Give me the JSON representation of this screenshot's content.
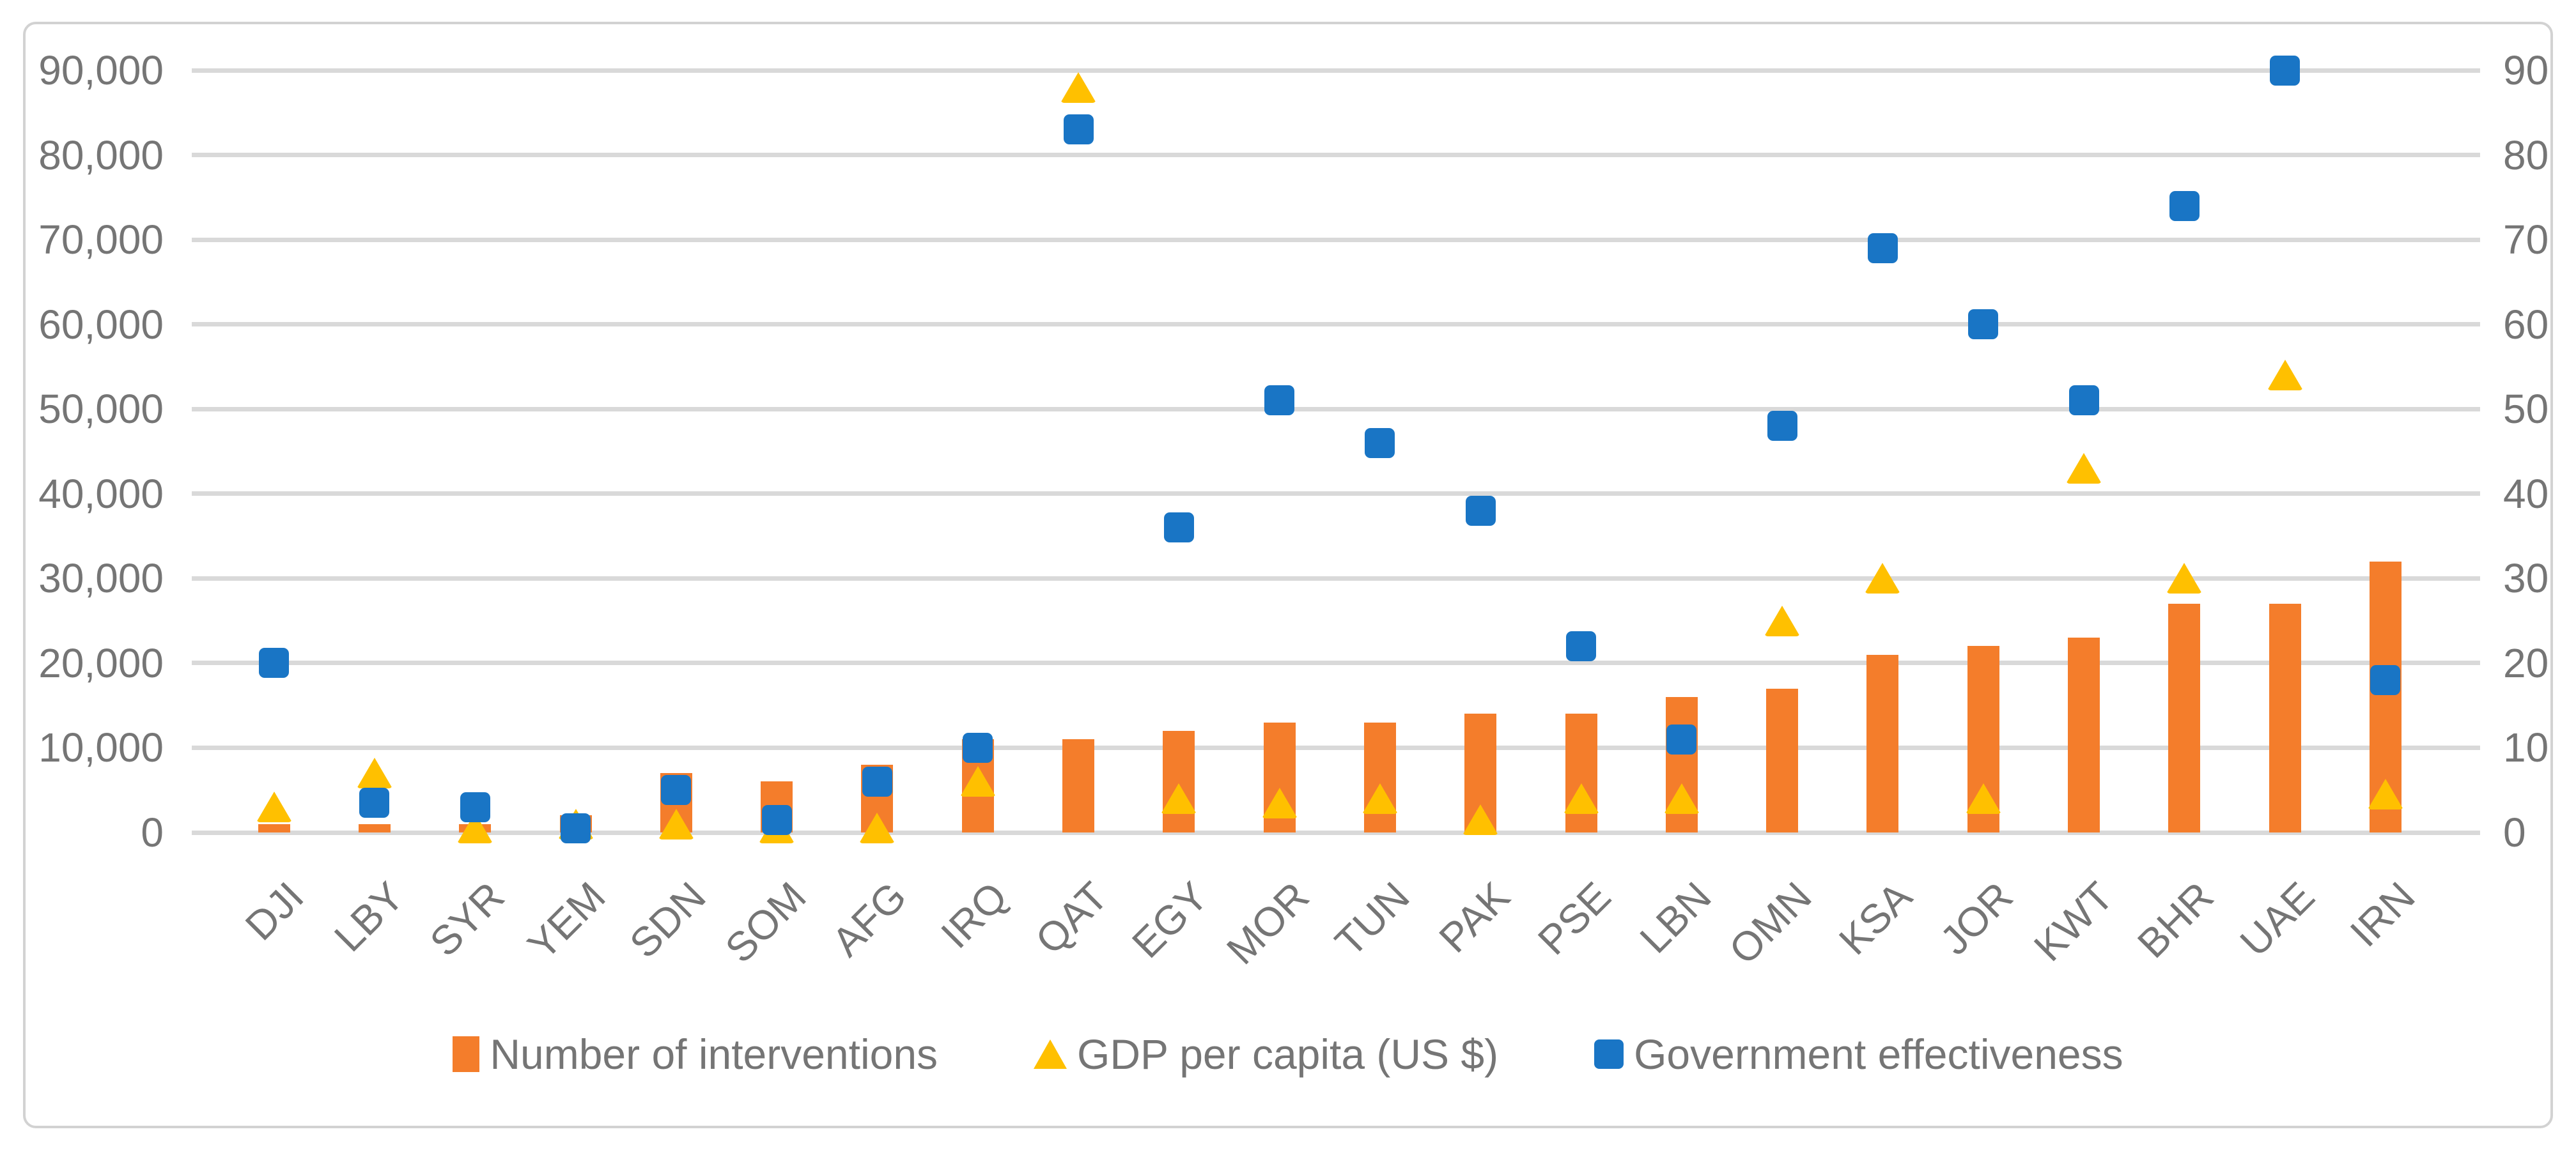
{
  "chart_data": {
    "type": "bar",
    "subtype": "combo-bar-scatter-dual-axis",
    "title": "",
    "xlabel": "",
    "ylabel": "",
    "grid": true,
    "legend_position": "bottom",
    "categories": [
      "DJI",
      "LBY",
      "SYR",
      "YEM",
      "SDN",
      "SOM",
      "AFG",
      "IRQ",
      "QAT",
      "EGY",
      "MOR",
      "TUN",
      "PAK",
      "PSE",
      "LBN",
      "OMN",
      "KSA",
      "JOR",
      "KWT",
      "BHR",
      "UAE",
      "IRN"
    ],
    "series": [
      {
        "name": "Number of interventions",
        "type": "bar",
        "axis": "left",
        "color": "#f47d2b",
        "values": [
          1000,
          1000,
          1000,
          2000,
          7000,
          6000,
          8000,
          11000,
          11000,
          12000,
          13000,
          13000,
          14000,
          14000,
          16000,
          17000,
          21000,
          22000,
          23000,
          27000,
          27000,
          32000
        ]
      },
      {
        "name": "GDP per capita (US $)",
        "type": "scatter-triangle",
        "axis": "left",
        "color": "#ffc000",
        "values": [
          3000,
          7000,
          500,
          1000,
          1000,
          500,
          500,
          6000,
          88000,
          4000,
          3500,
          4000,
          1500,
          4000,
          4000,
          25000,
          30000,
          4000,
          43000,
          30000,
          54000,
          4500
        ]
      },
      {
        "name": "Government effectiveness",
        "type": "scatter-square",
        "axis": "right",
        "color": "#1975c5",
        "values": [
          20,
          3.5,
          3,
          0.5,
          5,
          1.5,
          6,
          10,
          83,
          36,
          51,
          46,
          38,
          22,
          11,
          48,
          69,
          60,
          51,
          74,
          90,
          18
        ]
      }
    ],
    "left_axis": {
      "min": 0,
      "max": 90000,
      "step": 10000,
      "tick_labels": [
        "0",
        "10,000",
        "20,000",
        "30,000",
        "40,000",
        "50,000",
        "60,000",
        "70,000",
        "80,000",
        "90,000"
      ]
    },
    "right_axis": {
      "min": 0,
      "max": 90,
      "step": 10,
      "tick_labels": [
        "0",
        "10",
        "20",
        "30",
        "40",
        "50",
        "60",
        "70",
        "80",
        "90"
      ]
    },
    "gridline_color": "#d9d9d9",
    "text_color": "#757575"
  },
  "legend": {
    "interventions_label": "Number of interventions",
    "gdp_label": "GDP per capita (US $)",
    "government_label": "Government effectiveness"
  }
}
